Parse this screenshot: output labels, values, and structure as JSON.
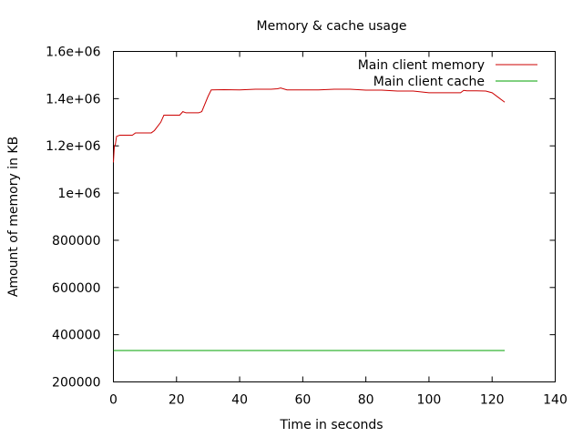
{
  "chart_data": {
    "type": "line",
    "title": "Memory & cache usage",
    "xlabel": "Time in seconds",
    "ylabel": "Amount of memory in KB",
    "xlim": [
      0,
      140
    ],
    "ylim": [
      200000,
      1600000
    ],
    "xticks": [
      0,
      20,
      40,
      60,
      80,
      100,
      120,
      140
    ],
    "xtick_labels": [
      "0",
      "20",
      "40",
      "60",
      "80",
      "100",
      "120",
      "140"
    ],
    "yticks": [
      200000,
      400000,
      600000,
      800000,
      1000000,
      1200000,
      1400000,
      1600000
    ],
    "ytick_labels": [
      "200000",
      "400000",
      "600000",
      "800000",
      "1e+06",
      "1.2e+06",
      "1.4e+06",
      "1.6e+06"
    ],
    "grid": false,
    "legend_position": "top-right",
    "series": [
      {
        "name": "Main client memory",
        "color": "#cc0000",
        "x": [
          0,
          0.3,
          0.6,
          1,
          2,
          3,
          6,
          7,
          9,
          12,
          13,
          15,
          16,
          18,
          21,
          22,
          23,
          25,
          27,
          28,
          30,
          31,
          35,
          40,
          45,
          50,
          52,
          53,
          55,
          60,
          65,
          70,
          75,
          80,
          85,
          90,
          95,
          100,
          105,
          110,
          111,
          112,
          115,
          118,
          120,
          122,
          124
        ],
        "y": [
          1130000,
          1200000,
          1205000,
          1240000,
          1245000,
          1245000,
          1245000,
          1255000,
          1255000,
          1255000,
          1265000,
          1300000,
          1330000,
          1330000,
          1330000,
          1345000,
          1340000,
          1340000,
          1340000,
          1345000,
          1410000,
          1437000,
          1438000,
          1437000,
          1440000,
          1440000,
          1442000,
          1445000,
          1437000,
          1437000,
          1437000,
          1440000,
          1440000,
          1436000,
          1436000,
          1432000,
          1432000,
          1425000,
          1425000,
          1425000,
          1435000,
          1433000,
          1433000,
          1432000,
          1425000,
          1405000,
          1385000
        ]
      },
      {
        "name": "Main client cache",
        "color": "#00a000",
        "x": [
          0,
          124
        ],
        "y": [
          333000,
          333000
        ]
      }
    ]
  }
}
